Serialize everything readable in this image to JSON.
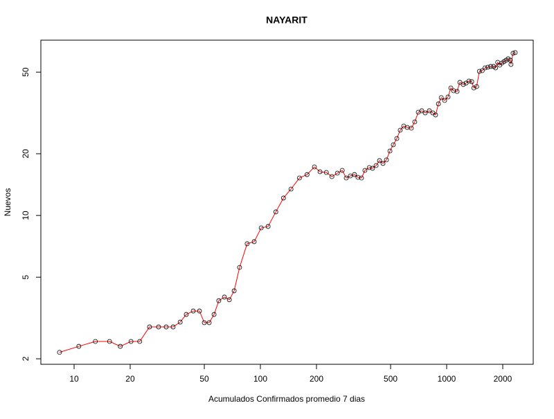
{
  "chart_data": {
    "type": "line",
    "title": "NAYARIT",
    "xlabel": "Acumulados Confirmados promedio  7  dias",
    "ylabel": "Nuevos",
    "log_x": true,
    "log_y": true,
    "xlim": [
      6.63,
      2915
    ],
    "ylim": [
      1.88,
      71.6
    ],
    "xticks": [
      10,
      20,
      50,
      100,
      200,
      500,
      1000,
      2000
    ],
    "yticks": [
      2,
      5,
      10,
      20,
      50
    ],
    "x": [
      8.35,
      10.6,
      13.0,
      15.5,
      17.7,
      20.2,
      22.5,
      25.4,
      28.4,
      31.2,
      34.0,
      37.1,
      40.0,
      43.6,
      47.1,
      50.0,
      53.1,
      56.4,
      59.8,
      64.1,
      68.1,
      72.3,
      77.3,
      84.9,
      92.6,
      101,
      110,
      121,
      133,
      146,
      162,
      178,
      195,
      209,
      226,
      242,
      259,
      275,
      289,
      304,
      320,
      334,
      349,
      364,
      384,
      400,
      418,
      436,
      455,
      475,
      496,
      517,
      540,
      563,
      588,
      614,
      646,
      674,
      704,
      735,
      767,
      807,
      842,
      872,
      903,
      935,
      975,
      1017,
      1053,
      1090,
      1137,
      1177,
      1228,
      1272,
      1317,
      1363,
      1399,
      1448,
      1499,
      1552,
      1607,
      1664,
      1723,
      1784,
      1831,
      1879,
      1928,
      1979,
      2031,
      2084,
      2139,
      2195,
      2214,
      2272,
      2332
    ],
    "series": [
      {
        "color": "#ff0000",
        "marker_color": "#000000",
        "values": [
          2.15,
          2.3,
          2.43,
          2.43,
          2.3,
          2.43,
          2.43,
          2.86,
          2.86,
          2.86,
          2.86,
          3.02,
          3.29,
          3.42,
          3.42,
          3.0,
          3.0,
          3.29,
          3.84,
          4.0,
          3.88,
          4.29,
          5.58,
          7.28,
          7.45,
          8.7,
          8.84,
          10.41,
          12.16,
          13.45,
          15.23,
          15.83,
          17.25,
          16.34,
          16.21,
          15.47,
          16.08,
          16.59,
          15.23,
          15.59,
          15.83,
          15.35,
          15.23,
          16.59,
          17.12,
          16.99,
          17.52,
          18.51,
          17.94,
          18.66,
          20.63,
          22.13,
          23.73,
          26.05,
          27.3,
          26.88,
          26.67,
          28.6,
          31.89,
          32.4,
          31.65,
          32.4,
          31.65,
          30.93,
          35.02,
          37.55,
          36.4,
          37.84,
          41.87,
          40.58,
          40.27,
          44.57,
          43.54,
          44.23,
          45.26,
          44.92,
          41.87,
          42.53,
          50.47,
          50.86,
          52.47,
          52.88,
          53.3,
          53.3,
          52.47,
          55.83,
          54.12,
          55.4,
          56.28,
          57.17,
          58.07,
          57.17,
          54.55,
          61.81,
          62.29
        ]
      }
    ]
  }
}
